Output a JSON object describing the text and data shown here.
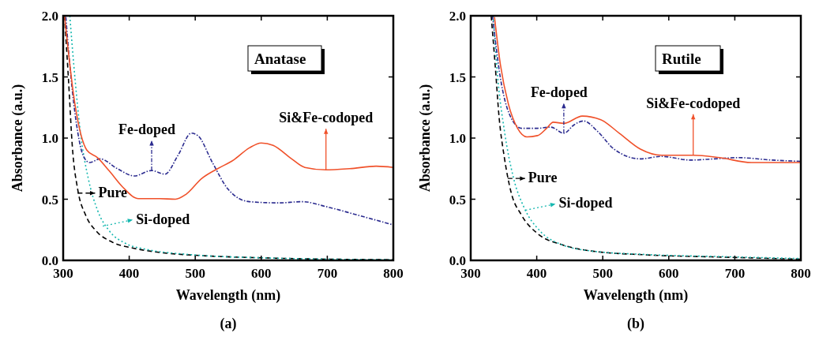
{
  "chart_data": [
    {
      "type": "line",
      "xlabel": "Wavelength (nm)",
      "ylabel": "Absorbance (a.u.)",
      "xlim": [
        300,
        800
      ],
      "ylim": [
        0,
        2
      ],
      "xticks": [
        300,
        400,
        500,
        600,
        700,
        800
      ],
      "yticks": [
        {
          "value": 0,
          "label": "0.0"
        },
        {
          "value": 0.5,
          "label": "0.5"
        },
        {
          "value": 1,
          "label": "1.0"
        },
        {
          "value": 1.5,
          "label": "1.5"
        },
        {
          "value": 2,
          "label": "2.0"
        }
      ],
      "grid": false,
      "annotations": [
        "Anatase",
        "(a)",
        {
          "text": "Pure",
          "x": 322,
          "y": 0.55
        },
        {
          "text": "Si-doped",
          "x": 360,
          "y": 0.28
        },
        {
          "text": "Fe-doped",
          "x": 434,
          "y": 0.735
        },
        {
          "text": "Si&Fe-codoped",
          "x": 698,
          "y": 0.74
        }
      ],
      "series": [
        {
          "color": "#000000",
          "line_style": "dashed",
          "x": [
            302,
            308,
            314,
            322,
            334,
            350,
            374,
            406,
            446,
            506,
            606,
            800
          ],
          "values": [
            2.0,
            1.48,
            0.92,
            0.58,
            0.37,
            0.24,
            0.15,
            0.1,
            0.065,
            0.04,
            0.02,
            0.005
          ]
        },
        {
          "color": "#17b8b0",
          "line_style": "dotted",
          "x": [
            310,
            318,
            326,
            338,
            352,
            370,
            394,
            426,
            486,
            606,
            800
          ],
          "values": [
            2.0,
            1.48,
            1.05,
            0.67,
            0.41,
            0.24,
            0.14,
            0.09,
            0.05,
            0.02,
            0.005
          ]
        },
        {
          "color": "#2b2b8f",
          "line_style": "dashdot",
          "x": [
            304,
            314,
            322,
            330,
            340,
            356,
            382,
            408,
            434,
            454,
            474,
            494,
            504,
            526,
            550,
            582,
            626,
            662,
            698,
            746,
            800
          ],
          "values": [
            1.99,
            1.38,
            1.05,
            0.86,
            0.8,
            0.83,
            0.75,
            0.69,
            0.735,
            0.705,
            0.86,
            1.04,
            1.02,
            0.8,
            0.58,
            0.48,
            0.47,
            0.48,
            0.44,
            0.37,
            0.29
          ]
        },
        {
          "color": "#f0512a",
          "line_style": "solid",
          "x": [
            302,
            318,
            336,
            352,
            370,
            390,
            414,
            446,
            470,
            486,
            510,
            534,
            558,
            582,
            600,
            618,
            646,
            666,
            698,
            734,
            774,
            800
          ],
          "values": [
            2.0,
            1.27,
            0.9,
            0.84,
            0.73,
            0.6,
            0.505,
            0.505,
            0.5,
            0.54,
            0.67,
            0.75,
            0.82,
            0.92,
            0.96,
            0.94,
            0.83,
            0.76,
            0.74,
            0.75,
            0.77,
            0.76
          ]
        }
      ]
    },
    {
      "type": "line",
      "xlabel": "Wavelength (nm)",
      "ylabel": "Absorbance (a.u.)",
      "xlim": [
        300,
        800
      ],
      "ylim": [
        0,
        2
      ],
      "xticks": [
        300,
        400,
        500,
        600,
        700,
        800
      ],
      "yticks": [
        {
          "value": 0,
          "label": "0.0"
        },
        {
          "value": 0.5,
          "label": "0.5"
        },
        {
          "value": 1,
          "label": "1.0"
        },
        {
          "value": 1.5,
          "label": "1.5"
        },
        {
          "value": 2,
          "label": "2.0"
        }
      ],
      "grid": false,
      "annotations": [
        "Rutile",
        "(b)",
        {
          "text": "Pure",
          "x": 356,
          "y": 0.67
        },
        {
          "text": "Si-doped",
          "x": 383,
          "y": 0.41
        },
        {
          "text": "Fe-doped",
          "x": 441,
          "y": 1.04
        },
        {
          "text": "Si&Fe-codoped",
          "x": 637,
          "y": 0.86
        }
      ],
      "series": [
        {
          "color": "#000000",
          "line_style": "dashed",
          "x": [
            331,
            337,
            343,
            351,
            361,
            377,
            401,
            437,
            485,
            565,
            685,
            800
          ],
          "values": [
            2.0,
            1.6,
            1.17,
            0.84,
            0.56,
            0.37,
            0.22,
            0.13,
            0.075,
            0.045,
            0.026,
            0.01
          ]
        },
        {
          "color": "#17b8b0",
          "line_style": "dotted",
          "x": [
            334,
            341,
            351,
            365,
            381,
            405,
            437,
            485,
            565,
            685,
            800
          ],
          "values": [
            2.0,
            1.49,
            1.06,
            0.67,
            0.43,
            0.24,
            0.13,
            0.075,
            0.048,
            0.03,
            0.015
          ]
        },
        {
          "color": "#2b2b8f",
          "line_style": "dashdot",
          "x": [
            333,
            345,
            359,
            377,
            401,
            421,
            441,
            457,
            471,
            493,
            517,
            557,
            589,
            633,
            669,
            705,
            757,
            800
          ],
          "values": [
            2.0,
            1.49,
            1.19,
            1.08,
            1.08,
            1.09,
            1.04,
            1.11,
            1.14,
            1.05,
            0.91,
            0.83,
            0.85,
            0.82,
            0.83,
            0.84,
            0.82,
            0.81
          ]
        },
        {
          "color": "#f0512a",
          "line_style": "solid",
          "x": [
            336,
            345,
            357,
            371,
            385,
            401,
            415,
            425,
            441,
            469,
            497,
            525,
            557,
            589,
            637,
            677,
            725,
            800
          ],
          "values": [
            1.99,
            1.6,
            1.28,
            1.08,
            1.01,
            1.02,
            1.08,
            1.13,
            1.12,
            1.18,
            1.15,
            1.04,
            0.91,
            0.86,
            0.86,
            0.84,
            0.8,
            0.8
          ]
        }
      ]
    }
  ]
}
